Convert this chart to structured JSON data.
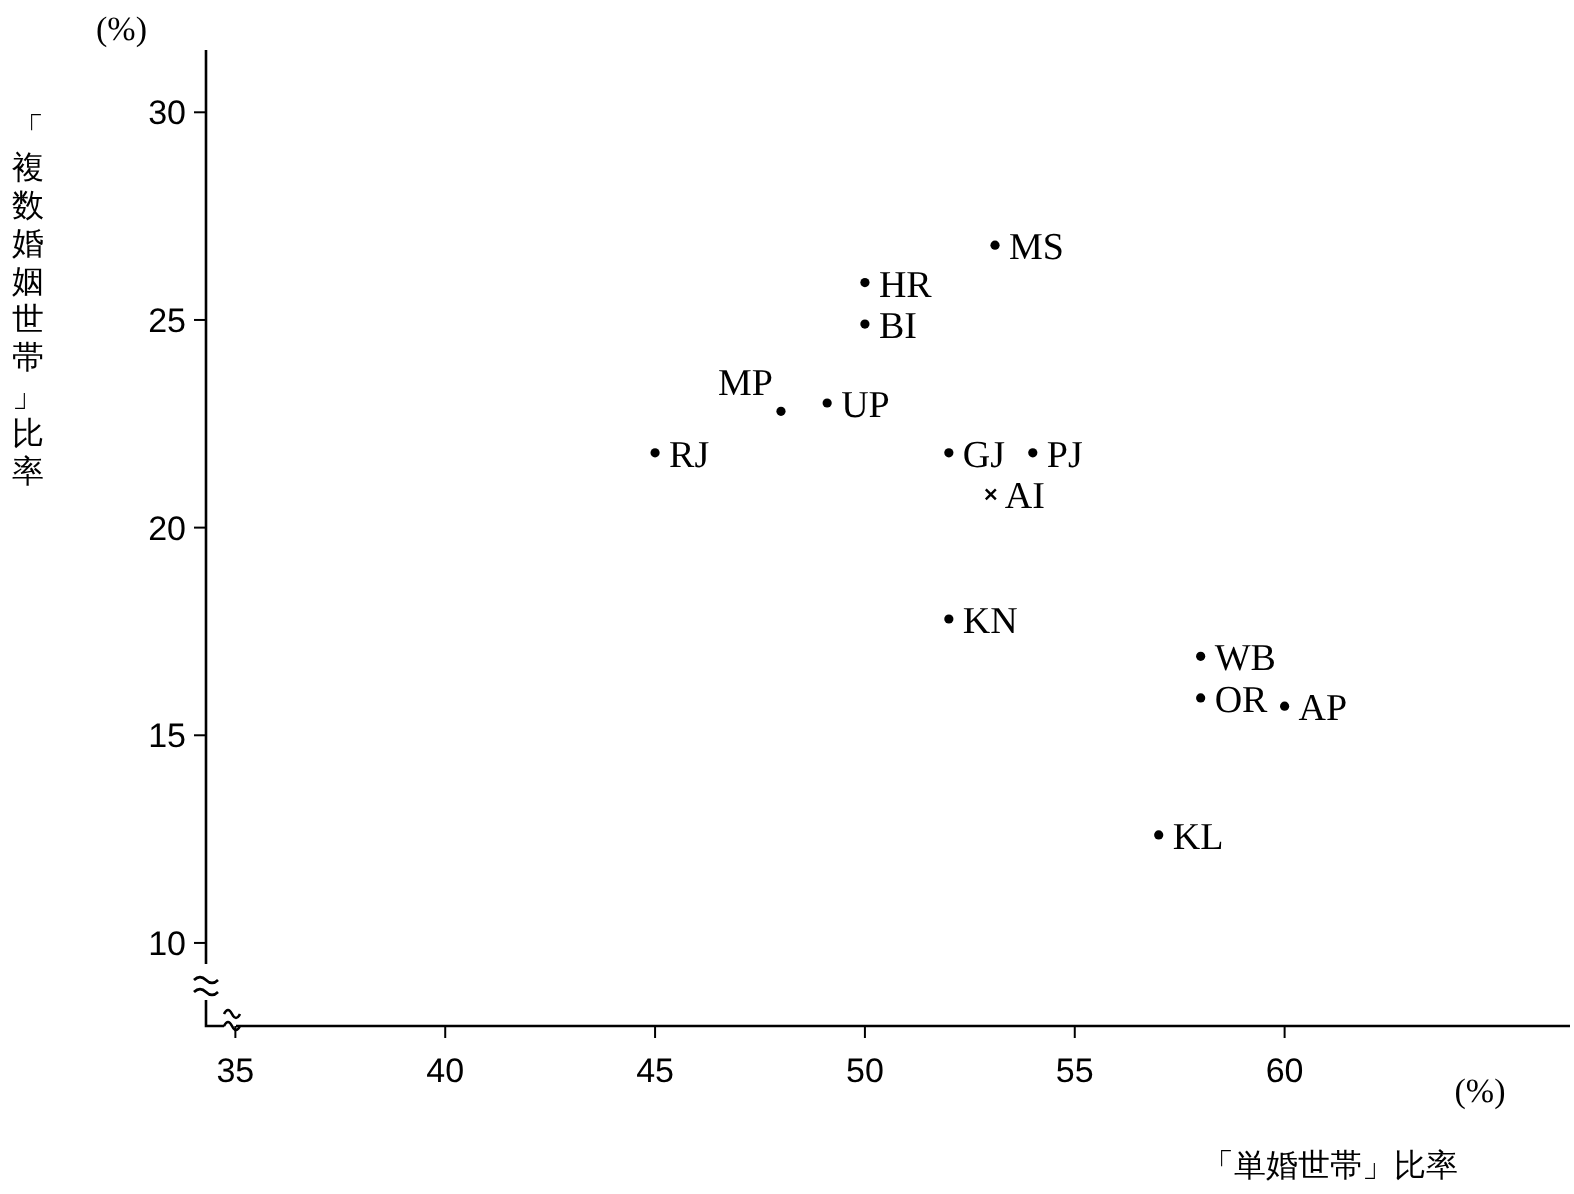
{
  "chart_data": {
    "type": "scatter",
    "xlabel": "「単婚世帯」比率",
    "ylabel": "「複数婚姻世帯」比率",
    "annotations": [
      "(%)",
      "(%)"
    ],
    "xlim": [
      34.3,
      66.8
    ],
    "ylim": [
      8,
      31.5
    ],
    "xticks": [
      35,
      40,
      45,
      50,
      55,
      60
    ],
    "yticks": [
      10,
      15,
      20,
      25,
      30
    ],
    "grid": false,
    "series": [
      {
        "color": "#000000",
        "marker": "circle",
        "x": [
          53.1,
          50,
          50,
          49.1,
          48,
          45,
          52,
          54,
          52,
          58,
          58,
          60,
          57
        ],
        "values": [
          26.8,
          25.9,
          24.9,
          23.0,
          22.8,
          21.8,
          21.8,
          21.8,
          17.8,
          16.9,
          15.9,
          15.7,
          12.6
        ],
        "value_labels": [
          "MS",
          "HR",
          "BI",
          "UP",
          "MP",
          "RJ",
          "GJ",
          "PJ",
          "KN",
          "WB",
          "OR",
          "AP",
          "KL"
        ]
      },
      {
        "color": "#000000",
        "marker": "cross",
        "x": [
          53
        ],
        "values": [
          20.8
        ],
        "value_labels": [
          "AI"
        ]
      }
    ]
  }
}
